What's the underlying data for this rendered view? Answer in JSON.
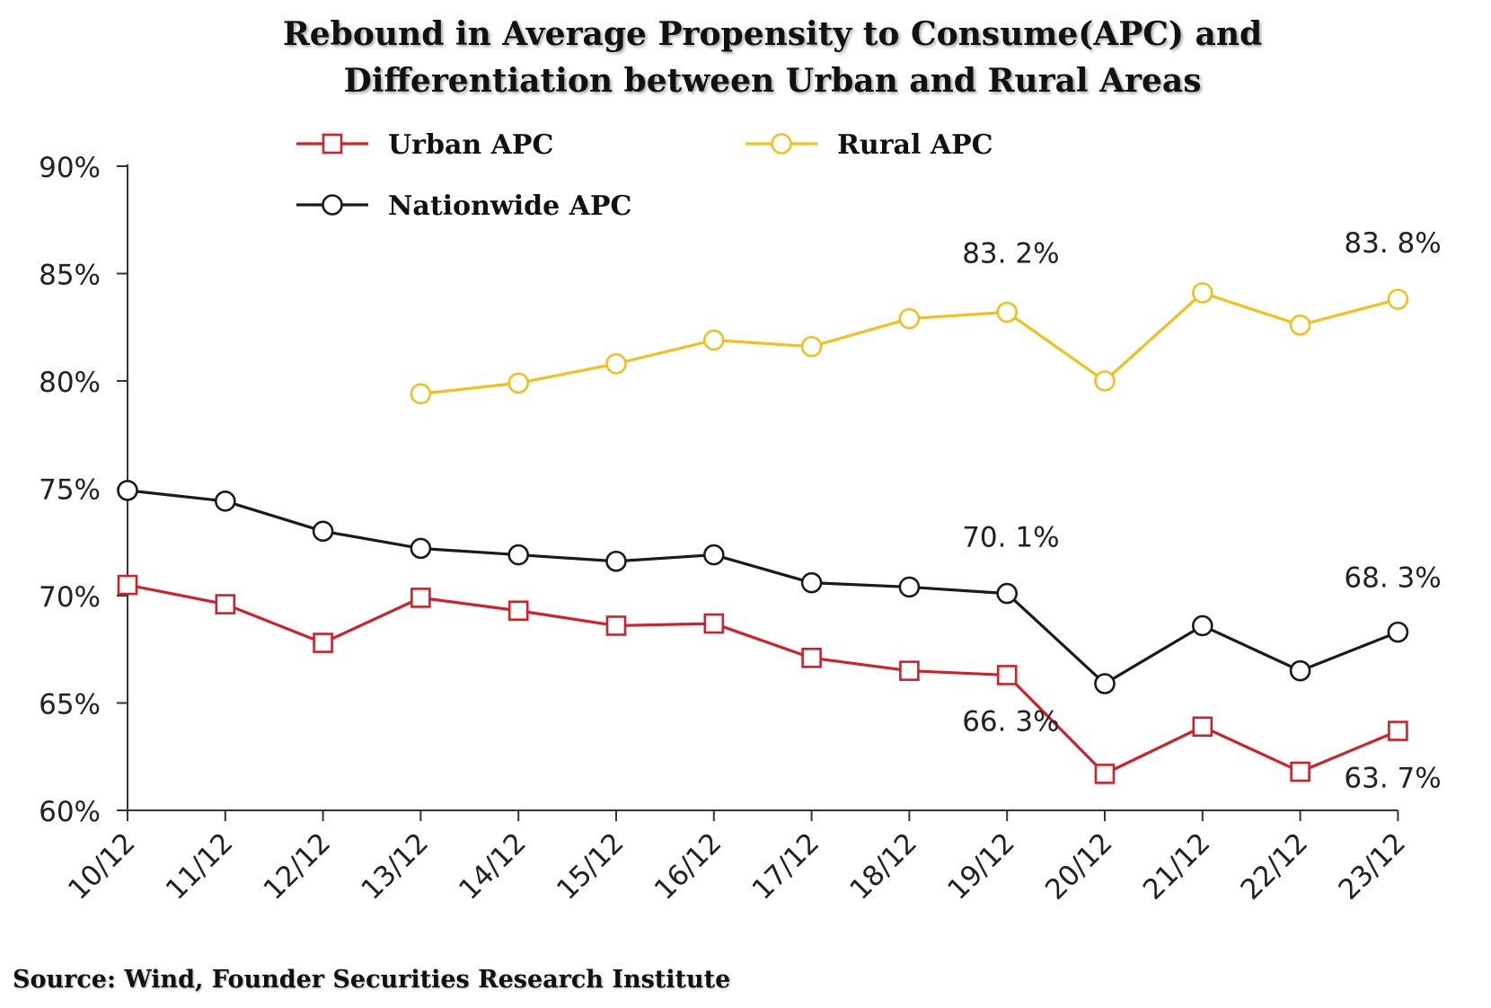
{
  "title_line1": "Rebound in Average Propensity to Consume(APC) and",
  "title_line2": "Differentiation between Urban and Rural Areas",
  "source": "Source: Wind, Founder Securities Research Institute",
  "chart_data": {
    "type": "line",
    "categories": [
      "10/12",
      "11/12",
      "12/12",
      "13/12",
      "14/12",
      "15/12",
      "16/12",
      "17/12",
      "18/12",
      "19/12",
      "20/12",
      "21/12",
      "22/12",
      "23/12"
    ],
    "ylim": [
      60,
      90
    ],
    "yticks": [
      "60%",
      "65%",
      "70%",
      "75%",
      "80%",
      "85%",
      "90%"
    ],
    "yticks_values": [
      60,
      65,
      70,
      75,
      80,
      85,
      90
    ],
    "grid": false,
    "legend_placement": "top",
    "series": [
      {
        "name": "Urban APC",
        "color": "#d0202a",
        "marker": "square",
        "values": [
          70.5,
          69.6,
          67.8,
          69.9,
          69.3,
          68.6,
          68.7,
          67.1,
          66.5,
          66.3,
          61.7,
          63.9,
          61.8,
          63.7
        ]
      },
      {
        "name": "Rural APC",
        "color": "#f2c01e",
        "marker": "circle",
        "values": [
          null,
          null,
          null,
          79.4,
          79.9,
          80.8,
          81.9,
          81.6,
          82.9,
          83.2,
          80.0,
          84.1,
          82.6,
          83.8
        ]
      },
      {
        "name": "Nationwide APC",
        "color": "#1a1a1a",
        "marker": "circle",
        "values": [
          74.9,
          74.4,
          73.0,
          72.2,
          71.9,
          71.6,
          71.9,
          70.6,
          70.4,
          70.1,
          65.9,
          68.6,
          66.5,
          68.3
        ]
      }
    ],
    "annotations": [
      {
        "text": "83. 2%",
        "category": "19/12",
        "value": 83.2
      },
      {
        "text": "83. 8%",
        "category": "23/12",
        "value": 83.8
      },
      {
        "text": "70. 1%",
        "category": "19/12",
        "value": 70.1
      },
      {
        "text": "68. 3%",
        "category": "23/12",
        "value": 68.3
      },
      {
        "text": "66. 3%",
        "category": "19/12",
        "value": 66.3
      },
      {
        "text": "63. 7%",
        "category": "23/12",
        "value": 63.7
      }
    ]
  }
}
